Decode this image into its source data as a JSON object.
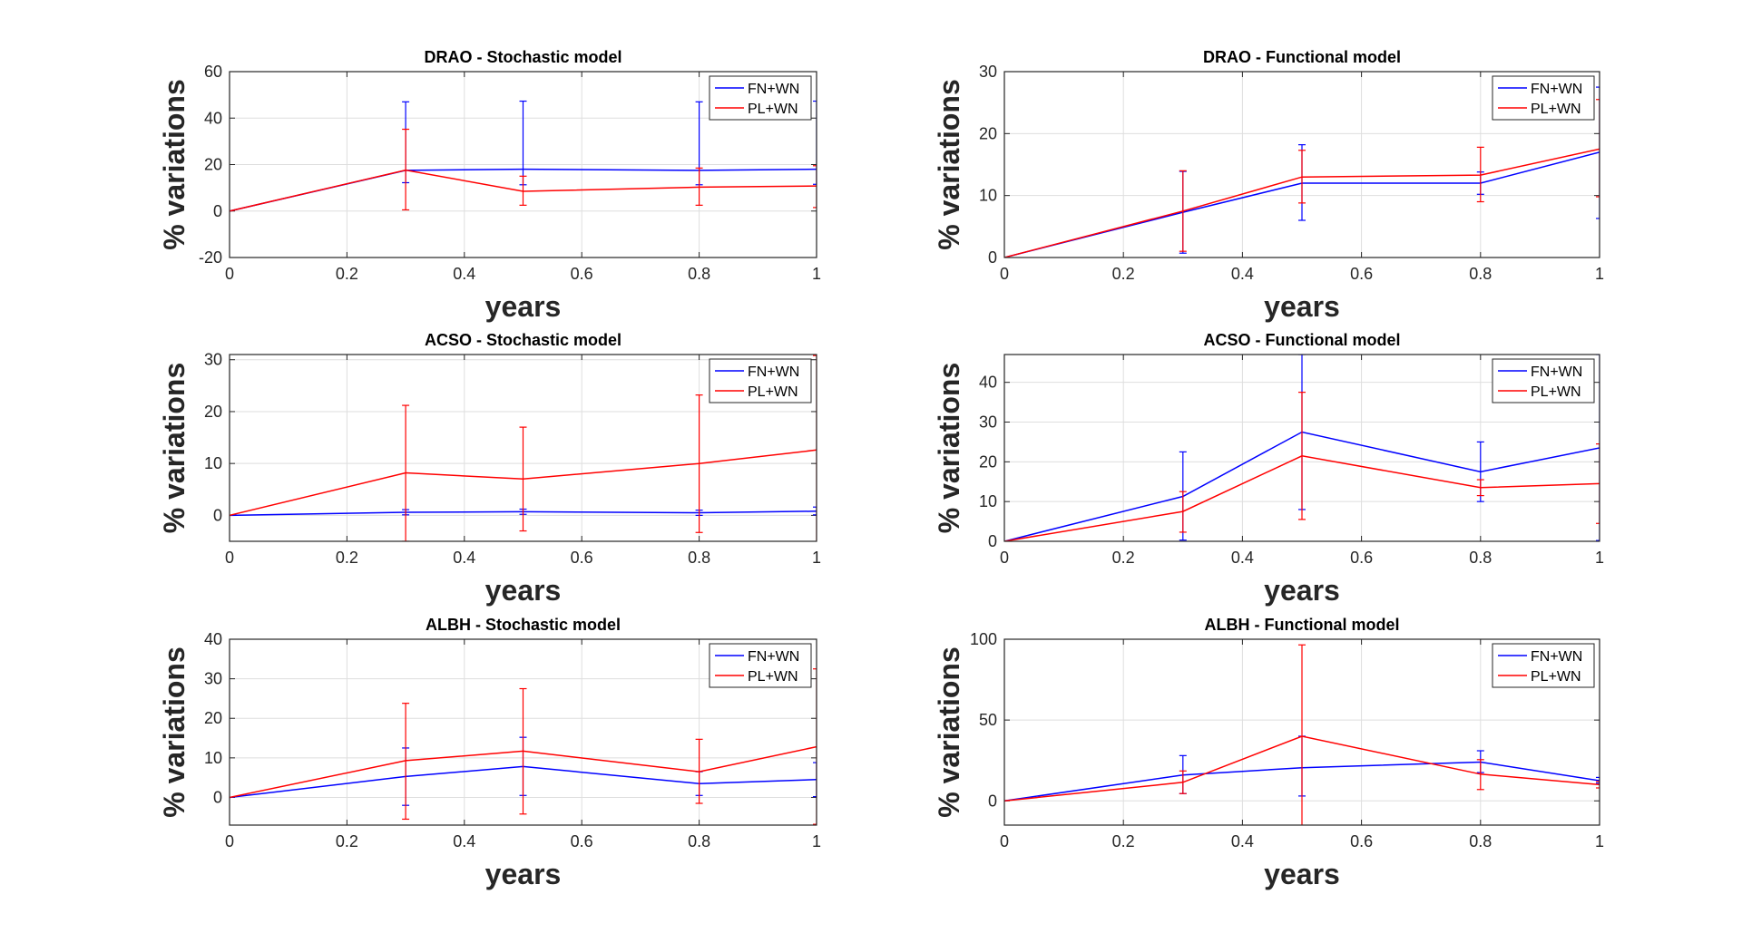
{
  "chart_data": [
    {
      "type": "line",
      "title": "DRAO - Stochastic model",
      "xlabel": "years",
      "ylabel": "% variations",
      "xlim": [
        0,
        1
      ],
      "ylim": [
        -20,
        60
      ],
      "xticks": [
        0,
        0.2,
        0.4,
        0.6,
        0.8,
        1
      ],
      "xtick_labels": [
        "0",
        "0.2",
        "0.4",
        "0.6",
        "0.8",
        "1"
      ],
      "yticks": [
        -20,
        0,
        20,
        40,
        60
      ],
      "ytick_labels": [
        "-20",
        "0",
        "20",
        "40",
        "60"
      ],
      "grid": true,
      "legend_position": "top-right",
      "series": [
        {
          "name": "FN+WN",
          "color": "#0000ff",
          "x": [
            0,
            0.3,
            0.5,
            0.8,
            1
          ],
          "values": [
            0,
            17.5,
            18,
            17.5,
            18
          ],
          "err_low": [
            null,
            12.2,
            11.3,
            11.3,
            11.5
          ],
          "err_high": [
            null,
            47,
            47.3,
            47,
            47.3
          ]
        },
        {
          "name": "PL+WN",
          "color": "#ff0000",
          "x": [
            0,
            0.3,
            0.5,
            0.8,
            1
          ],
          "values": [
            0,
            17.6,
            8.5,
            10.3,
            10.8
          ],
          "err_low": [
            null,
            0.5,
            2.5,
            2.5,
            1.5
          ],
          "err_high": [
            null,
            35.2,
            15,
            18.5,
            19.5
          ]
        }
      ]
    },
    {
      "type": "line",
      "title": "DRAO - Functional model",
      "xlabel": "years",
      "ylabel": "% variations",
      "xlim": [
        0,
        1
      ],
      "ylim": [
        0,
        30
      ],
      "xticks": [
        0,
        0.2,
        0.4,
        0.6,
        0.8,
        1
      ],
      "xtick_labels": [
        "0",
        "0.2",
        "0.4",
        "0.6",
        "0.8",
        "1"
      ],
      "yticks": [
        0,
        10,
        20,
        30
      ],
      "ytick_labels": [
        "0",
        "10",
        "20",
        "30"
      ],
      "grid": true,
      "legend_position": "top-right",
      "series": [
        {
          "name": "FN+WN",
          "color": "#0000ff",
          "x": [
            0,
            0.3,
            0.5,
            0.8,
            1
          ],
          "values": [
            0,
            7.3,
            12,
            12,
            17
          ],
          "err_low": [
            null,
            0.7,
            6,
            10.2,
            6.3
          ],
          "err_high": [
            null,
            13.9,
            18.2,
            13.8,
            27.5
          ]
        },
        {
          "name": "PL+WN",
          "color": "#ff0000",
          "x": [
            0,
            0.3,
            0.5,
            0.8,
            1
          ],
          "values": [
            0,
            7.5,
            13,
            13.3,
            17.5
          ],
          "err_low": [
            null,
            1,
            8.8,
            9,
            9.8
          ],
          "err_high": [
            null,
            14,
            17.3,
            17.8,
            25.5
          ]
        }
      ]
    },
    {
      "type": "line",
      "title": "ACSO - Stochastic model",
      "xlabel": "years",
      "ylabel": "% variations",
      "xlim": [
        0,
        1
      ],
      "ylim": [
        -5,
        31
      ],
      "xticks": [
        0,
        0.2,
        0.4,
        0.6,
        0.8,
        1
      ],
      "xtick_labels": [
        "0",
        "0.2",
        "0.4",
        "0.6",
        "0.8",
        "1"
      ],
      "yticks": [
        0,
        10,
        20,
        30
      ],
      "ytick_labels": [
        "0",
        "10",
        "20",
        "30"
      ],
      "grid": true,
      "legend_position": "top-right",
      "series": [
        {
          "name": "FN+WN",
          "color": "#0000ff",
          "x": [
            0,
            0.3,
            0.5,
            0.8,
            1
          ],
          "values": [
            0,
            0.6,
            0.7,
            0.5,
            0.8
          ],
          "err_low": [
            null,
            0.1,
            0.2,
            0,
            0.1
          ],
          "err_high": [
            null,
            1.1,
            1.2,
            1,
            1.6
          ]
        },
        {
          "name": "PL+WN",
          "color": "#ff0000",
          "x": [
            0,
            0.3,
            0.5,
            0.8,
            1
          ],
          "values": [
            0,
            8.2,
            7,
            10,
            12.6
          ],
          "err_low": [
            null,
            -5,
            -3,
            -3.3,
            -5.5
          ],
          "err_high": [
            null,
            21.2,
            17,
            23.2,
            30.8
          ]
        }
      ]
    },
    {
      "type": "line",
      "title": "ACSO - Functional model",
      "xlabel": "years",
      "ylabel": "% variations",
      "xlim": [
        0,
        1
      ],
      "ylim": [
        0,
        47
      ],
      "xticks": [
        0,
        0.2,
        0.4,
        0.6,
        0.8,
        1
      ],
      "xtick_labels": [
        "0",
        "0.2",
        "0.4",
        "0.6",
        "0.8",
        "1"
      ],
      "yticks": [
        0,
        10,
        20,
        30,
        40
      ],
      "ytick_labels": [
        "0",
        "10",
        "20",
        "30",
        "40"
      ],
      "grid": true,
      "legend_position": "top-right",
      "series": [
        {
          "name": "FN+WN",
          "color": "#0000ff",
          "x": [
            0,
            0.3,
            0.5,
            0.8,
            1
          ],
          "values": [
            0,
            11.3,
            27.5,
            17.5,
            23.5
          ],
          "err_low": [
            null,
            0.3,
            8,
            10,
            0.2
          ],
          "err_high": [
            null,
            22.5,
            47,
            25,
            47
          ]
        },
        {
          "name": "PL+WN",
          "color": "#ff0000",
          "x": [
            0,
            0.3,
            0.5,
            0.8,
            1
          ],
          "values": [
            0,
            7.5,
            21.5,
            13.5,
            14.5
          ],
          "err_low": [
            null,
            2.3,
            5.5,
            11.5,
            4.5
          ],
          "err_high": [
            null,
            12.5,
            37.5,
            15.5,
            24.5
          ]
        }
      ]
    },
    {
      "type": "line",
      "title": "ALBH - Stochastic model",
      "xlabel": "years",
      "ylabel": "% variations",
      "xlim": [
        0,
        1
      ],
      "ylim": [
        -7,
        40
      ],
      "xticks": [
        0,
        0.2,
        0.4,
        0.6,
        0.8,
        1
      ],
      "xtick_labels": [
        "0",
        "0.2",
        "0.4",
        "0.6",
        "0.8",
        "1"
      ],
      "yticks": [
        0,
        10,
        20,
        30,
        40
      ],
      "ytick_labels": [
        "0",
        "10",
        "20",
        "30",
        "40"
      ],
      "grid": true,
      "legend_position": "top-right",
      "series": [
        {
          "name": "FN+WN",
          "color": "#0000ff",
          "x": [
            0,
            0.3,
            0.5,
            0.8,
            1
          ],
          "values": [
            0,
            5.3,
            7.8,
            3.5,
            4.5
          ],
          "err_low": [
            null,
            -2,
            0.5,
            0.5,
            0.2
          ],
          "err_high": [
            null,
            12.5,
            15.2,
            6.5,
            8.8
          ]
        },
        {
          "name": "PL+WN",
          "color": "#ff0000",
          "x": [
            0,
            0.3,
            0.5,
            0.8,
            1
          ],
          "values": [
            0,
            9.3,
            11.7,
            6.5,
            12.8
          ],
          "err_low": [
            null,
            -5.5,
            -4.2,
            -1.5,
            -6.8
          ],
          "err_high": [
            null,
            23.8,
            27.5,
            14.7,
            32.5
          ]
        }
      ]
    },
    {
      "type": "line",
      "title": "ALBH - Functional model",
      "xlabel": "years",
      "ylabel": "% variations",
      "xlim": [
        0,
        1
      ],
      "ylim": [
        -15,
        100
      ],
      "xticks": [
        0,
        0.2,
        0.4,
        0.6,
        0.8,
        1
      ],
      "xtick_labels": [
        "0",
        "0.2",
        "0.4",
        "0.6",
        "0.8",
        "1"
      ],
      "yticks": [
        0,
        50,
        100
      ],
      "ytick_labels": [
        "0",
        "50",
        "100"
      ],
      "grid": true,
      "legend_position": "top-right",
      "series": [
        {
          "name": "FN+WN",
          "color": "#0000ff",
          "x": [
            0,
            0.3,
            0.5,
            0.8,
            1
          ],
          "values": [
            0,
            16,
            20.5,
            24,
            12.5
          ],
          "err_low": [
            null,
            4.5,
            3,
            17.5,
            11
          ],
          "err_high": [
            null,
            28,
            40,
            31,
            14.5
          ]
        },
        {
          "name": "PL+WN",
          "color": "#ff0000",
          "x": [
            0,
            0.3,
            0.5,
            0.8,
            1
          ],
          "values": [
            0,
            11.5,
            40,
            16.5,
            10
          ],
          "err_low": [
            null,
            4.5,
            -17,
            7,
            8
          ],
          "err_high": [
            null,
            18.5,
            96.5,
            25.5,
            12
          ]
        }
      ]
    }
  ]
}
